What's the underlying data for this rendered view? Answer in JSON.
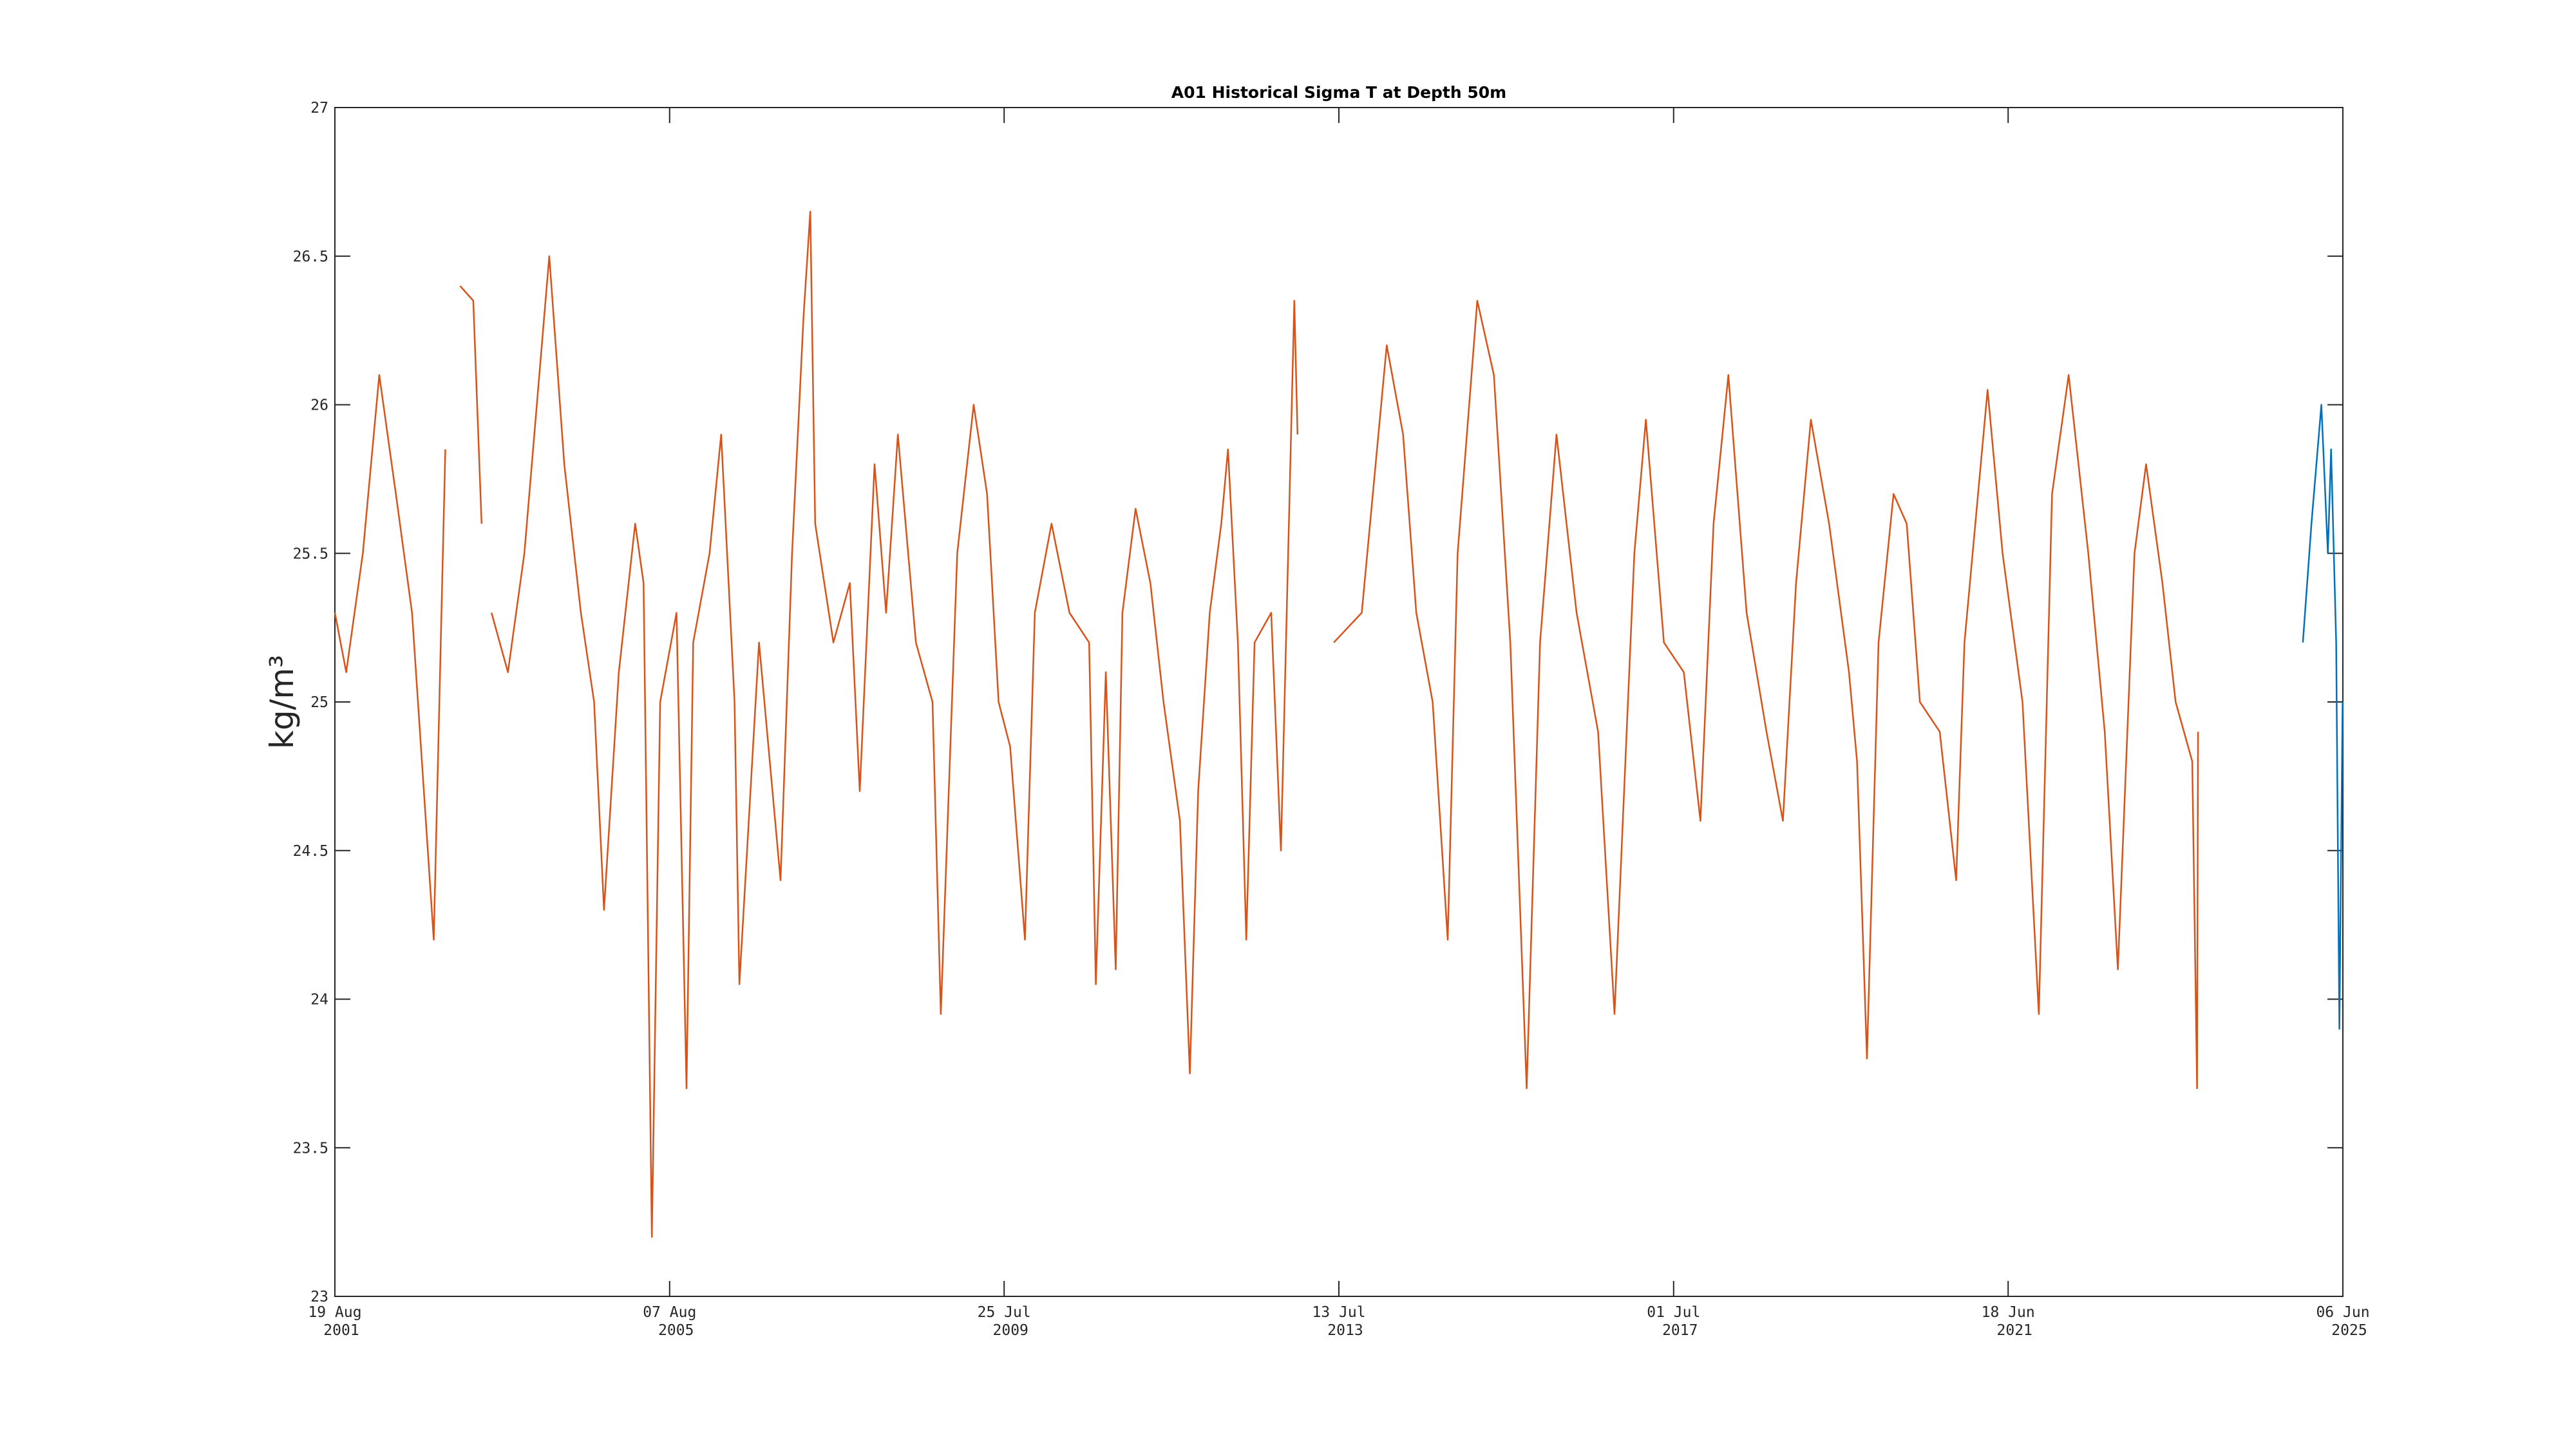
{
  "chart_data": {
    "type": "line",
    "title": "A01 Historical Sigma T at Depth 50m",
    "y_label": "kg/m³",
    "xlim": [
      "2001-08-19",
      "2025-06-06"
    ],
    "xticks": [
      {
        "value": "2001-08-19",
        "label": "19 Aug\n2001"
      },
      {
        "value": "2005-08-07",
        "label": "07 Aug\n2005"
      },
      {
        "value": "2009-07-25",
        "label": "25 Jul\n2009"
      },
      {
        "value": "2013-07-13",
        "label": "13 Jul\n2013"
      },
      {
        "value": "2017-07-01",
        "label": "01 Jul\n2017"
      },
      {
        "value": "2021-06-18",
        "label": "18 Jun\n2021"
      },
      {
        "value": "2025-06-06",
        "label": "06 Jun\n2025"
      }
    ],
    "ylim": [
      23,
      27
    ],
    "yticks": [
      23,
      23.5,
      24,
      24.5,
      25,
      25.5,
      26,
      26.5,
      27
    ],
    "series": [
      {
        "color": "#d95319",
        "x": [
          "2001-08-19",
          "2001-10-07",
          "2001-12-18",
          "2002-02-27",
          "2002-05-10",
          "2002-07-19",
          "2002-10-21",
          "2002-12-10",
          "2003-01-10",
          "2003-02-12",
          "2003-04-10",
          "2003-05-16",
          "2003-06-01",
          "2003-06-28",
          "2003-09-07",
          "2003-11-17",
          "2004-03-04",
          "2004-05-08",
          "2004-07-19",
          "2004-09-14",
          "2004-10-27",
          "2004-12-30",
          "2005-03-11",
          "2005-04-16",
          "2005-05-22",
          "2005-06-27",
          "2005-09-06",
          "2005-10-19",
          "2005-11-17",
          "2006-01-27",
          "2006-03-18",
          "2006-05-15",
          "2006-06-05",
          "2006-08-29",
          "2006-11-30",
          "2007-01-19",
          "2007-03-10",
          "2007-04-08",
          "2007-04-29",
          "2007-07-17",
          "2007-09-26",
          "2007-11-08",
          "2008-01-11",
          "2008-03-01",
          "2008-04-21",
          "2008-07-08",
          "2008-09-18",
          "2008-10-24",
          "2009-01-03",
          "2009-03-15",
          "2009-05-12",
          "2009-07-01",
          "2009-08-20",
          "2009-10-23",
          "2009-12-05",
          "2010-02-15",
          "2010-05-04",
          "2010-07-28",
          "2010-08-26",
          "2010-10-08",
          "2010-11-20",
          "2010-12-19",
          "2011-02-14",
          "2011-04-19",
          "2011-06-15",
          "2011-08-25",
          "2011-10-07",
          "2011-11-12",
          "2012-01-01",
          "2012-02-20",
          "2012-03-20",
          "2012-05-02",
          "2012-06-07",
          "2012-07-13",
          "2012-09-23",
          "2012-11-04",
          "2013-01-01",
          "2013-01-15",
          "2013-04-01",
          "2013-06-21",
          "2013-10-20",
          "2014-02-05",
          "2014-04-17",
          "2014-06-13",
          "2014-08-23",
          "2014-10-27",
          "2014-12-09",
          "2015-03-04",
          "2015-05-15",
          "2015-07-25",
          "2015-10-04",
          "2015-12-01",
          "2016-02-10",
          "2016-05-07",
          "2016-08-08",
          "2016-10-18",
          "2017-01-12",
          "2017-03-03",
          "2017-05-20",
          "2017-08-14",
          "2017-10-25",
          "2017-12-21",
          "2018-02-23",
          "2018-05-13",
          "2018-08-07",
          "2018-10-17",
          "2018-12-13",
          "2019-02-15",
          "2019-05-05",
          "2019-07-30",
          "2019-09-03",
          "2019-10-16",
          "2019-12-05",
          "2020-02-08",
          "2020-04-05",
          "2020-06-01",
          "2020-08-26",
          "2020-11-05",
          "2020-12-11",
          "2021-03-21",
          "2021-05-25",
          "2021-08-19",
          "2021-10-29",
          "2021-12-25",
          "2022-03-07",
          "2022-05-31",
          "2022-08-10",
          "2022-10-06",
          "2022-12-17",
          "2023-02-05",
          "2023-04-17",
          "2023-06-13",
          "2023-08-24",
          "2023-09-14",
          "2023-09-18"
        ],
        "values": [
          25.3,
          25.1,
          25.5,
          26.1,
          25.7,
          25.3,
          24.2,
          25.85,
          null,
          26.4,
          26.35,
          25.6,
          null,
          25.3,
          25.1,
          25.5,
          26.5,
          25.8,
          25.3,
          25.0,
          24.3,
          25.1,
          25.6,
          25.4,
          23.2,
          25.0,
          25.3,
          23.7,
          25.2,
          25.5,
          25.9,
          25.0,
          24.05,
          25.2,
          24.4,
          25.5,
          26.3,
          26.65,
          25.6,
          25.2,
          25.4,
          24.7,
          25.8,
          25.3,
          25.9,
          25.2,
          25.0,
          23.95,
          25.5,
          26.0,
          25.7,
          25.0,
          24.85,
          24.2,
          25.3,
          25.6,
          25.3,
          25.2,
          24.05,
          25.1,
          24.1,
          25.3,
          25.65,
          25.4,
          25.0,
          24.6,
          23.75,
          24.7,
          25.3,
          25.6,
          25.85,
          25.2,
          24.2,
          25.2,
          25.3,
          24.5,
          26.35,
          25.9,
          null,
          25.2,
          25.3,
          26.2,
          25.9,
          25.3,
          25.0,
          24.2,
          25.5,
          26.35,
          26.1,
          25.2,
          23.7,
          25.2,
          25.9,
          25.3,
          24.9,
          23.95,
          25.5,
          25.95,
          25.2,
          25.1,
          24.6,
          25.6,
          26.1,
          25.3,
          24.9,
          24.6,
          25.4,
          25.95,
          25.6,
          25.1,
          24.8,
          23.8,
          25.2,
          25.7,
          25.6,
          25.0,
          24.9,
          24.4,
          25.2,
          26.05,
          25.5,
          25.0,
          23.95,
          25.7,
          26.1,
          25.5,
          24.9,
          24.1,
          25.5,
          25.8,
          25.4,
          25.0,
          24.8,
          23.7,
          24.9
        ]
      },
      {
        "color": "#0072bd",
        "x": [
          "2024-12-15",
          "2025-01-21",
          "2025-03-05",
          "2025-04-02",
          "2025-04-16",
          "2025-05-08",
          "2025-05-22",
          "2025-06-05"
        ],
        "values": [
          25.2,
          25.6,
          26.0,
          25.5,
          25.85,
          25.2,
          23.9,
          25.0
        ]
      }
    ]
  }
}
